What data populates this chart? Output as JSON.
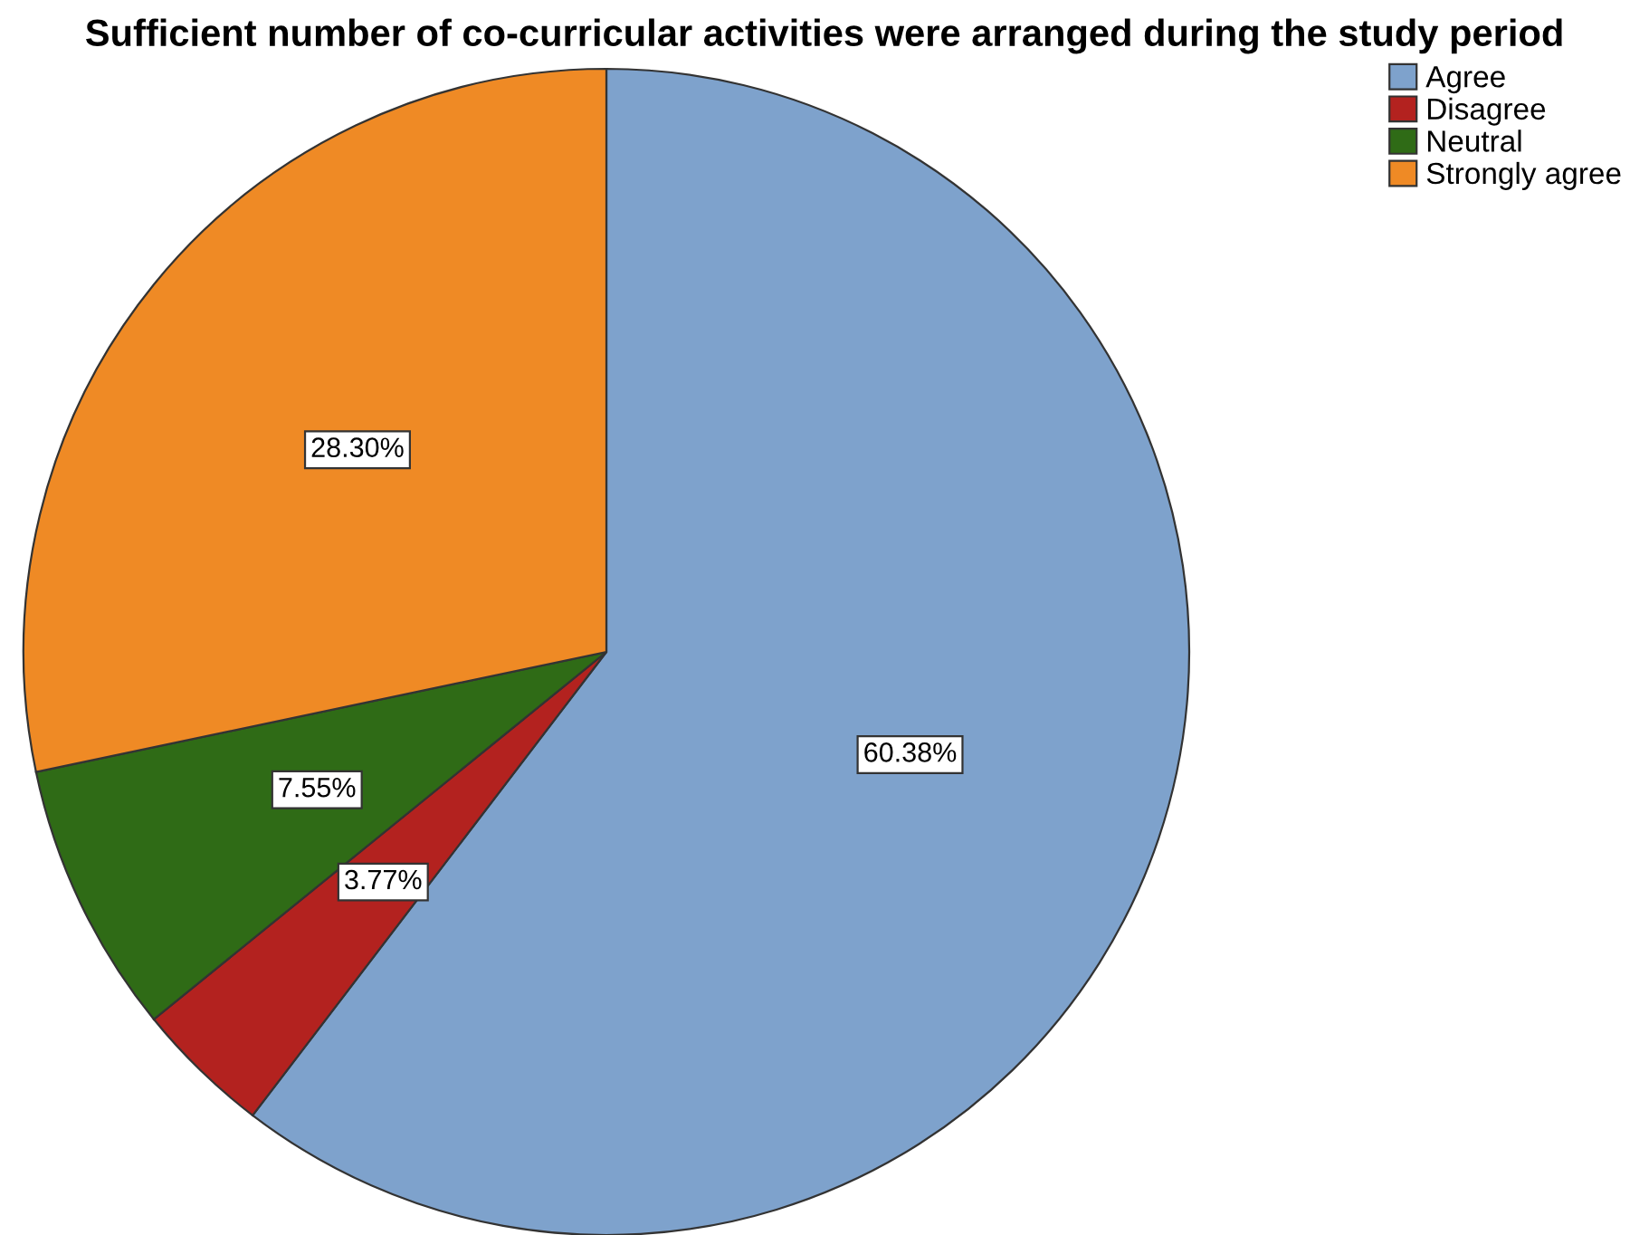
{
  "chart_data": {
    "type": "pie",
    "title": "Sufficient number of co-curricular activities were arranged during the study period",
    "categories": [
      "Agree",
      "Disagree",
      "Neutral",
      "Strongly agree"
    ],
    "values": [
      60.38,
      3.77,
      7.55,
      28.3
    ],
    "value_labels": [
      "60.38%",
      "3.77%",
      "7.55%",
      "28.30%"
    ],
    "colors": [
      "#7ea2cc",
      "#b3221f",
      "#2f6b16",
      "#ef8a25"
    ],
    "legend": "top right"
  }
}
